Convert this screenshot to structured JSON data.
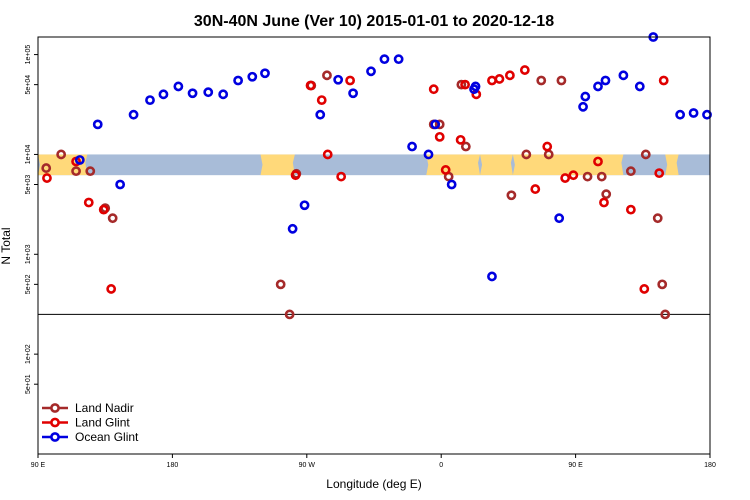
{
  "chart_data": {
    "type": "scatter",
    "title": "30N-40N June (Ver 10)   2015-01-01 to 2020-12-18",
    "xlabel": "Longitude (deg E)",
    "ylabel": "N Total",
    "xlim": [
      -90,
      360
    ],
    "y_scale": "log",
    "ylim": [
      10,
      150000
    ],
    "x_ticks": [
      {
        "value": -90,
        "label": "90 E"
      },
      {
        "value": 0,
        "label": "180"
      },
      {
        "value": 90,
        "label": "90 W"
      },
      {
        "value": 180,
        "label": "0"
      },
      {
        "value": 270,
        "label": "90 E"
      },
      {
        "value": 360,
        "label": "180"
      }
    ],
    "y_ticks": [
      {
        "value": 50,
        "label": "5e+01"
      },
      {
        "value": 100,
        "label": "1e+02"
      },
      {
        "value": 500,
        "label": "5e+02"
      },
      {
        "value": 1000,
        "label": "1e+03"
      },
      {
        "value": 5000,
        "label": "5e+03"
      },
      {
        "value": 10000,
        "label": "1e+04"
      },
      {
        "value": 50000,
        "label": "5e+04"
      },
      {
        "value": 100000,
        "label": "1e+05"
      }
    ],
    "reference_line_y": 250,
    "map_band": {
      "y_low": 6200,
      "y_high": 10000,
      "land_color": "#FFD97A",
      "ocean_color": "#A8BCD8"
    },
    "legend_position": "bottom-left",
    "series": [
      {
        "name": "Land Nadir",
        "color": "#A52A2A",
        "x": [
          -84.5,
          -74.5,
          -64.5,
          -55,
          -45,
          -40,
          72.5,
          78.5,
          83,
          93,
          103.5,
          175,
          179,
          185,
          193.5,
          196.5,
          227,
          237,
          247,
          252,
          260.5,
          278,
          287.5,
          290.5,
          307,
          317,
          325,
          328,
          330
        ],
        "y": [
          7300,
          10000,
          6800,
          6800,
          2900,
          2300,
          500,
          250,
          6400,
          49000,
          62000,
          20000,
          20000,
          6000,
          50000,
          12000,
          3900,
          10000,
          55000,
          10000,
          55000,
          6000,
          6000,
          4000,
          6800,
          10000,
          2300,
          500,
          250
        ]
      },
      {
        "name": "Land Glint",
        "color": "#E00000",
        "x": [
          -84,
          -64.5,
          -56,
          -46,
          -41,
          82.5,
          92.5,
          100,
          104,
          113,
          119,
          175,
          179,
          183,
          193,
          196,
          203.5,
          214,
          219,
          226,
          236,
          243,
          251,
          263,
          268.5,
          285,
          289,
          307,
          316,
          326,
          329
        ],
        "y": [
          5800,
          8500,
          3300,
          2800,
          450,
          6200,
          49000,
          35000,
          10000,
          6000,
          55000,
          45000,
          15000,
          7000,
          14000,
          50000,
          40000,
          55000,
          57000,
          62000,
          70000,
          4500,
          12000,
          5800,
          6200,
          8500,
          3300,
          2800,
          450,
          6500,
          55000
        ]
      },
      {
        "name": "Ocean Glint",
        "color": "#0000E0",
        "x": [
          -62,
          -50,
          -35,
          -26,
          -15,
          -6,
          4,
          13.5,
          24,
          34,
          44,
          53.5,
          62,
          80.5,
          88.5,
          99,
          111,
          121,
          133,
          142,
          151.5,
          160.5,
          171.5,
          176,
          187,
          202,
          203,
          214,
          259,
          275,
          276.5,
          285,
          290,
          302,
          313,
          322,
          340,
          349,
          358
        ],
        "y": [
          8800,
          20000,
          5000,
          25000,
          35000,
          40000,
          48000,
          41000,
          42000,
          40000,
          55000,
          60000,
          65000,
          1800,
          3100,
          25000,
          56000,
          41000,
          68000,
          90000,
          90000,
          12000,
          10000,
          20000,
          5000,
          45000,
          48000,
          600,
          2300,
          30000,
          38000,
          48000,
          55000,
          62000,
          48000,
          150000,
          25000,
          26000,
          25000
        ]
      }
    ]
  }
}
